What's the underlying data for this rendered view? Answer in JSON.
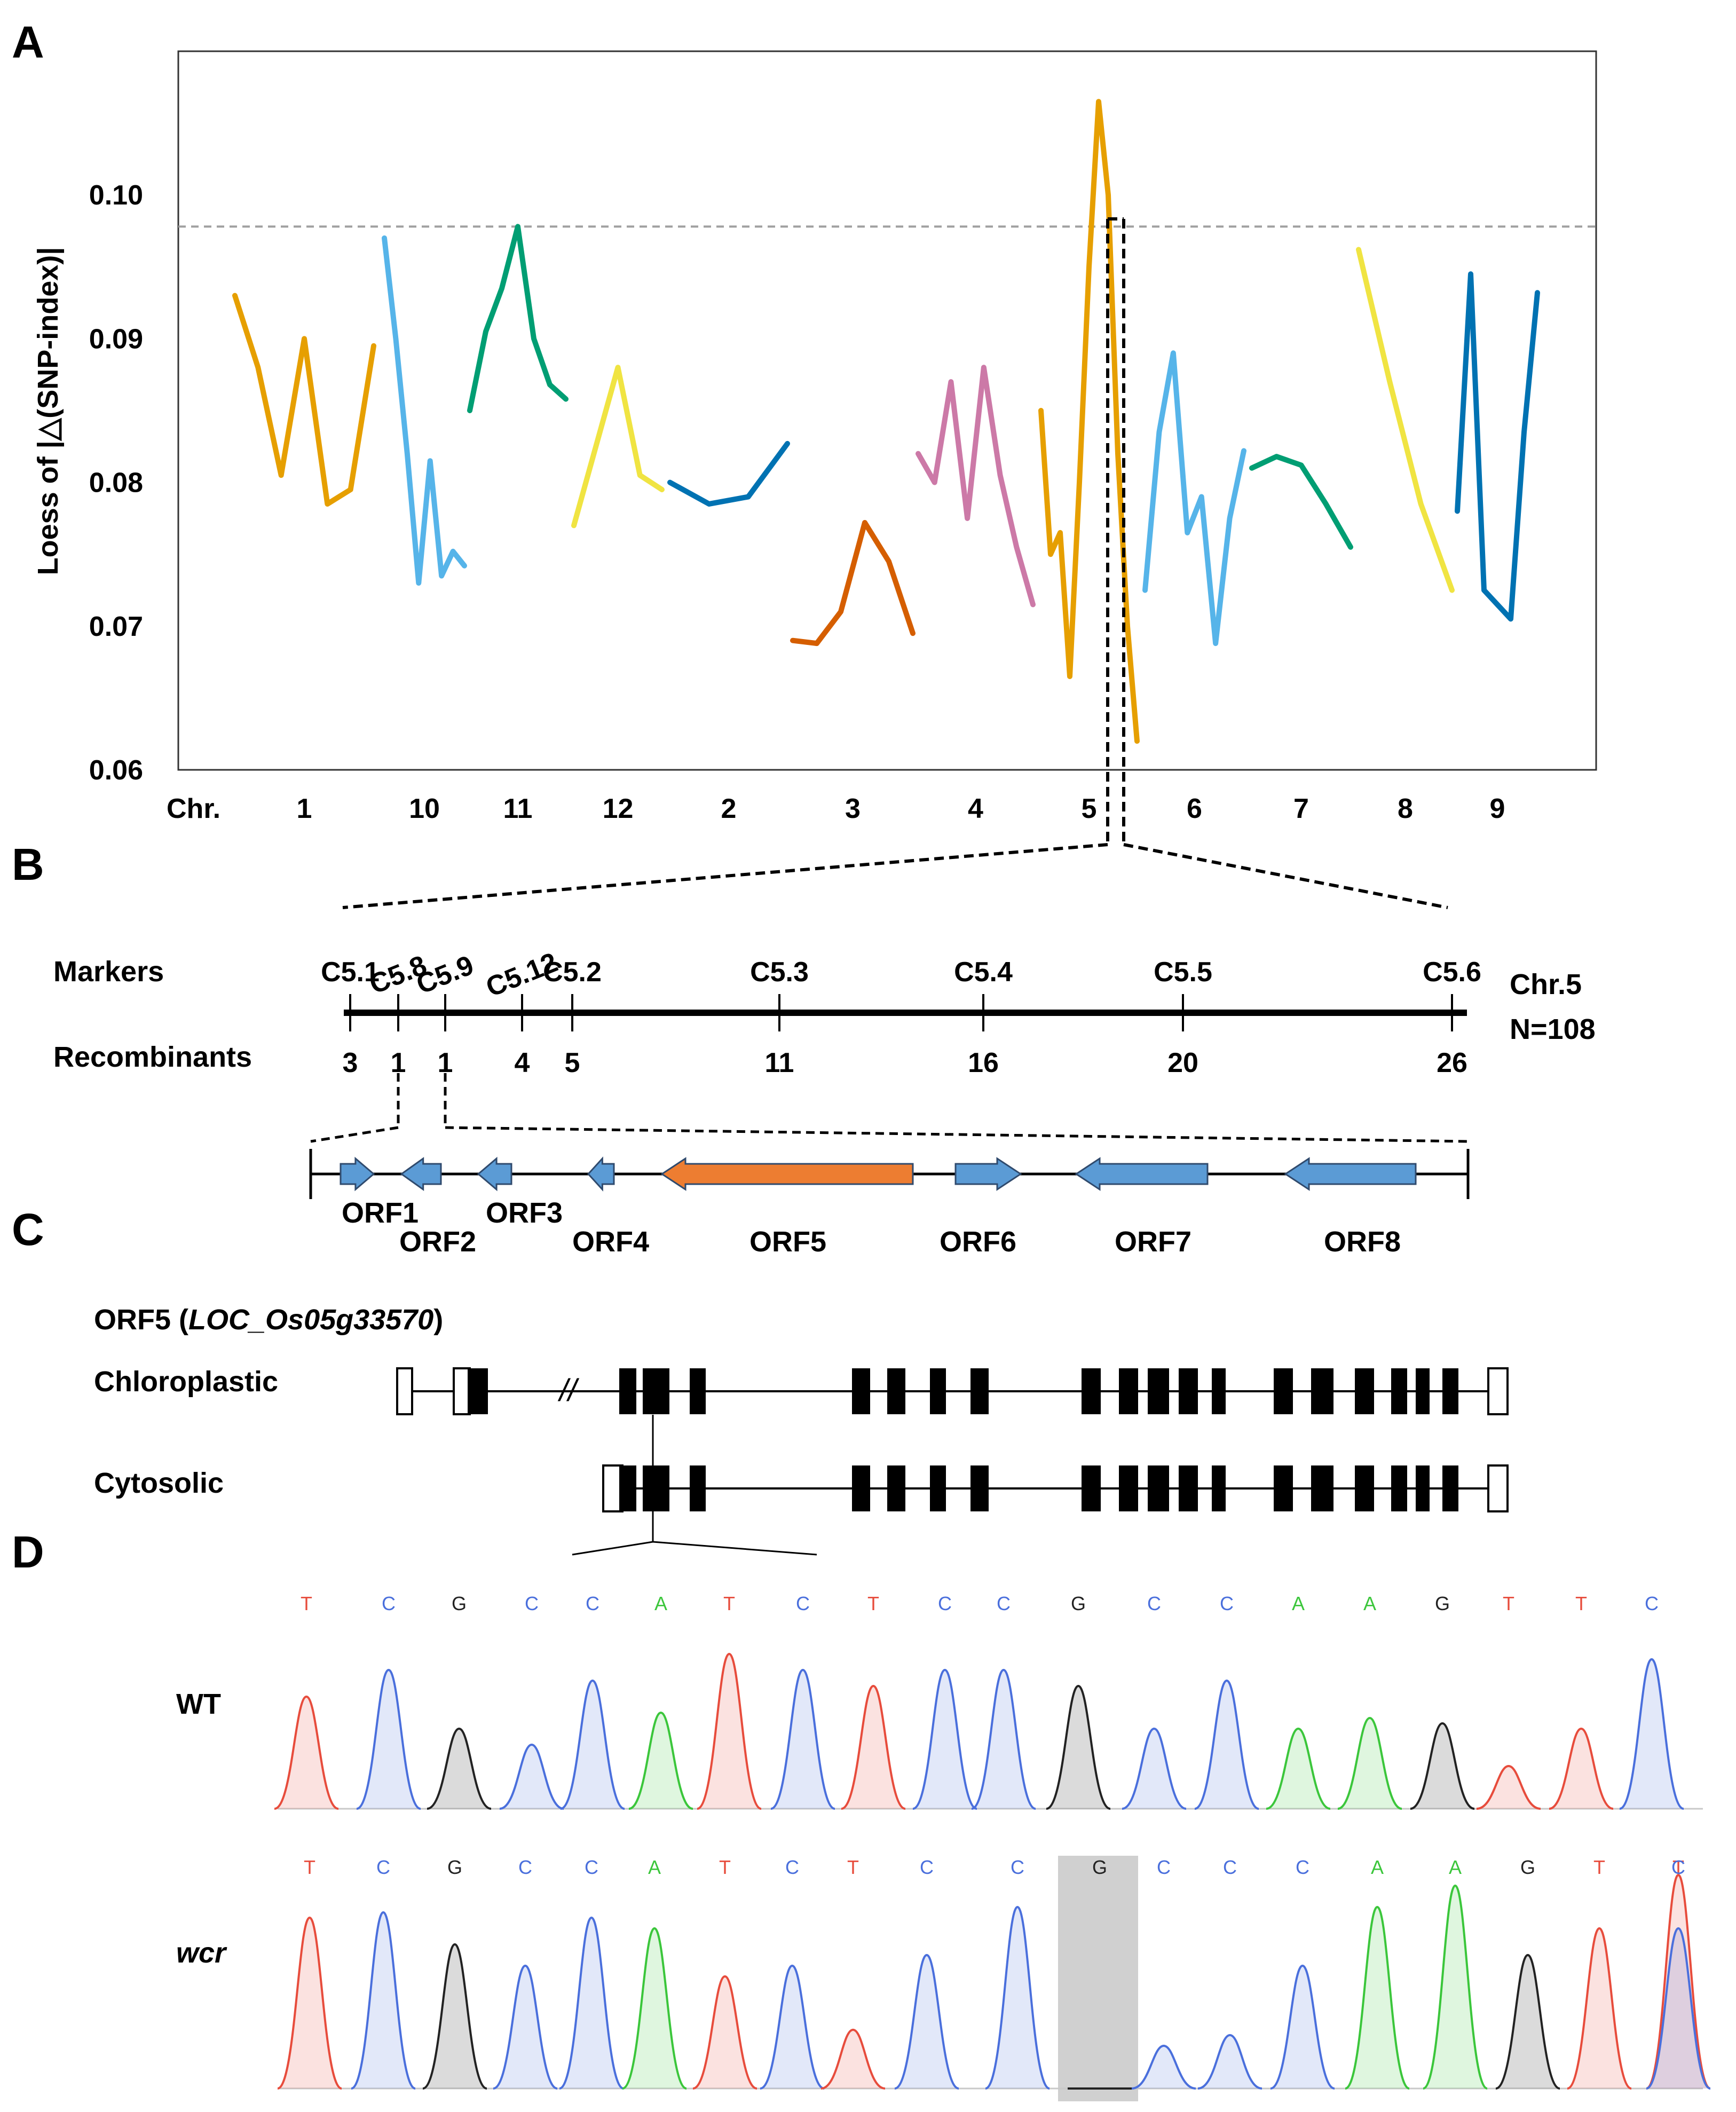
{
  "panels": {
    "a": "A",
    "b": "B",
    "c": "C",
    "d": "D"
  },
  "colors": {
    "orange": "#E69F00",
    "sky": "#56B4E9",
    "green": "#009E73",
    "yellow": "#F0E442",
    "blue": "#0072B2",
    "vermillion": "#D55E00",
    "purple": "#CC79A7",
    "orf_blue": "#5B9BD5",
    "orf_orange": "#ED7D31",
    "base_T": "#E74C3C",
    "base_C": "#4A6FDC",
    "base_G": "#222222",
    "base_A": "#3BC63B"
  },
  "chart_data": {
    "type": "line",
    "ylabel": "Loess of |△(SNP-index)|",
    "ylim": [
      0.06,
      0.11
    ],
    "yticks": [
      "0.06",
      "0.07",
      "0.08",
      "0.09",
      "0.10"
    ],
    "ytick_values": [
      0.06,
      0.07,
      0.08,
      0.09,
      0.1
    ],
    "x_axis_prefix": "Chr.",
    "threshold": 0.0978,
    "series": [
      {
        "chromosome": "1",
        "color": "#E69F00",
        "values": [
          0.093,
          0.088,
          0.0805,
          0.09,
          0.0785,
          0.0795,
          0.0895
        ]
      },
      {
        "chromosome": "10",
        "color": "#56B4E9",
        "values": [
          0.097,
          0.09,
          0.082,
          0.073,
          0.0815,
          0.0735,
          0.0752,
          0.0742
        ]
      },
      {
        "chromosome": "11",
        "color": "#009E73",
        "values": [
          0.085,
          0.0905,
          0.0935,
          0.0978,
          0.09,
          0.0868,
          0.0858
        ]
      },
      {
        "chromosome": "12",
        "color": "#F0E442",
        "values": [
          0.077,
          0.0825,
          0.088,
          0.0805,
          0.0795
        ]
      },
      {
        "chromosome": "2",
        "color": "#0072B2",
        "values": [
          0.08,
          0.0785,
          0.079,
          0.0827
        ]
      },
      {
        "chromosome": "3",
        "color": "#D55E00",
        "values": [
          0.069,
          0.0688,
          0.071,
          0.0772,
          0.0745,
          0.0695
        ]
      },
      {
        "chromosome": "4",
        "color": "#CC79A7",
        "values": [
          0.082,
          0.08,
          0.087,
          0.0775,
          0.088,
          0.0805,
          0.0755,
          0.0715
        ]
      },
      {
        "chromosome": "5",
        "color": "#E69F00",
        "values": [
          0.085,
          0.075,
          0.0765,
          0.0665,
          0.08,
          0.095,
          0.1065,
          0.1,
          0.082,
          0.07,
          0.062
        ]
      },
      {
        "chromosome": "6",
        "color": "#56B4E9",
        "values": [
          0.0725,
          0.0835,
          0.089,
          0.0765,
          0.079,
          0.0688,
          0.0775,
          0.0822
        ]
      },
      {
        "chromosome": "7",
        "color": "#009E73",
        "values": [
          0.081,
          0.0818,
          0.0812,
          0.0785,
          0.0755
        ]
      },
      {
        "chromosome": "8",
        "color": "#F0E442",
        "values": [
          0.0962,
          0.087,
          0.0785,
          0.0725
        ]
      },
      {
        "chromosome": "9",
        "color": "#0072B2",
        "values": [
          0.078,
          0.0945,
          0.0725,
          0.0715,
          0.0705,
          0.0835,
          0.0932
        ]
      }
    ]
  },
  "panel_b": {
    "markers_label": "Markers",
    "recombinants_label": "Recombinants",
    "chr_label": "Chr.5",
    "n_label": "N=108",
    "markers": [
      {
        "name": "C5.1",
        "recombinants": "3"
      },
      {
        "name": "C5.8",
        "recombinants": "1"
      },
      {
        "name": "C5.9",
        "recombinants": "1"
      },
      {
        "name": "C5.12",
        "recombinants": "4"
      },
      {
        "name": "C5.2",
        "recombinants": "5"
      },
      {
        "name": "C5.3",
        "recombinants": "11"
      },
      {
        "name": "C5.4",
        "recombinants": "16"
      },
      {
        "name": "C5.5",
        "recombinants": "20"
      },
      {
        "name": "C5.6",
        "recombinants": "26"
      }
    ],
    "orfs": [
      {
        "name": "ORF1",
        "direction": "right",
        "highlight": false
      },
      {
        "name": "ORF2",
        "direction": "left",
        "highlight": false
      },
      {
        "name": "ORF3",
        "direction": "left",
        "highlight": false
      },
      {
        "name": "ORF4",
        "direction": "left",
        "highlight": false
      },
      {
        "name": "ORF5",
        "direction": "left",
        "highlight": true
      },
      {
        "name": "ORF6",
        "direction": "right",
        "highlight": false
      },
      {
        "name": "ORF7",
        "direction": "left",
        "highlight": false
      },
      {
        "name": "ORF8",
        "direction": "left",
        "highlight": false
      }
    ]
  },
  "panel_c": {
    "title_prefix": "ORF5 (",
    "title_locus": "LOC_Os05g33570",
    "title_suffix": ")",
    "chloroplastic_label": "Chloroplastic",
    "cytosolic_label": "Cytosolic",
    "break_mark": "//"
  },
  "panel_d": {
    "wt_label": "WT",
    "mut_label": "wcr",
    "wt_sequence": [
      "T",
      "C",
      "G",
      "C",
      "C",
      "A",
      "T",
      "C",
      "T",
      "C",
      "C",
      "G",
      "C",
      "C",
      "A",
      "A",
      "G",
      "T",
      "T",
      "C"
    ],
    "mut_sequence": [
      "T",
      "C",
      "G",
      "C",
      "C",
      "A",
      "T",
      "C",
      "T",
      "C",
      "C",
      "G",
      "C",
      "C",
      "C",
      "A",
      "A",
      "G",
      "T",
      "T",
      "C"
    ],
    "highlighted_mut_base_index": 12
  }
}
